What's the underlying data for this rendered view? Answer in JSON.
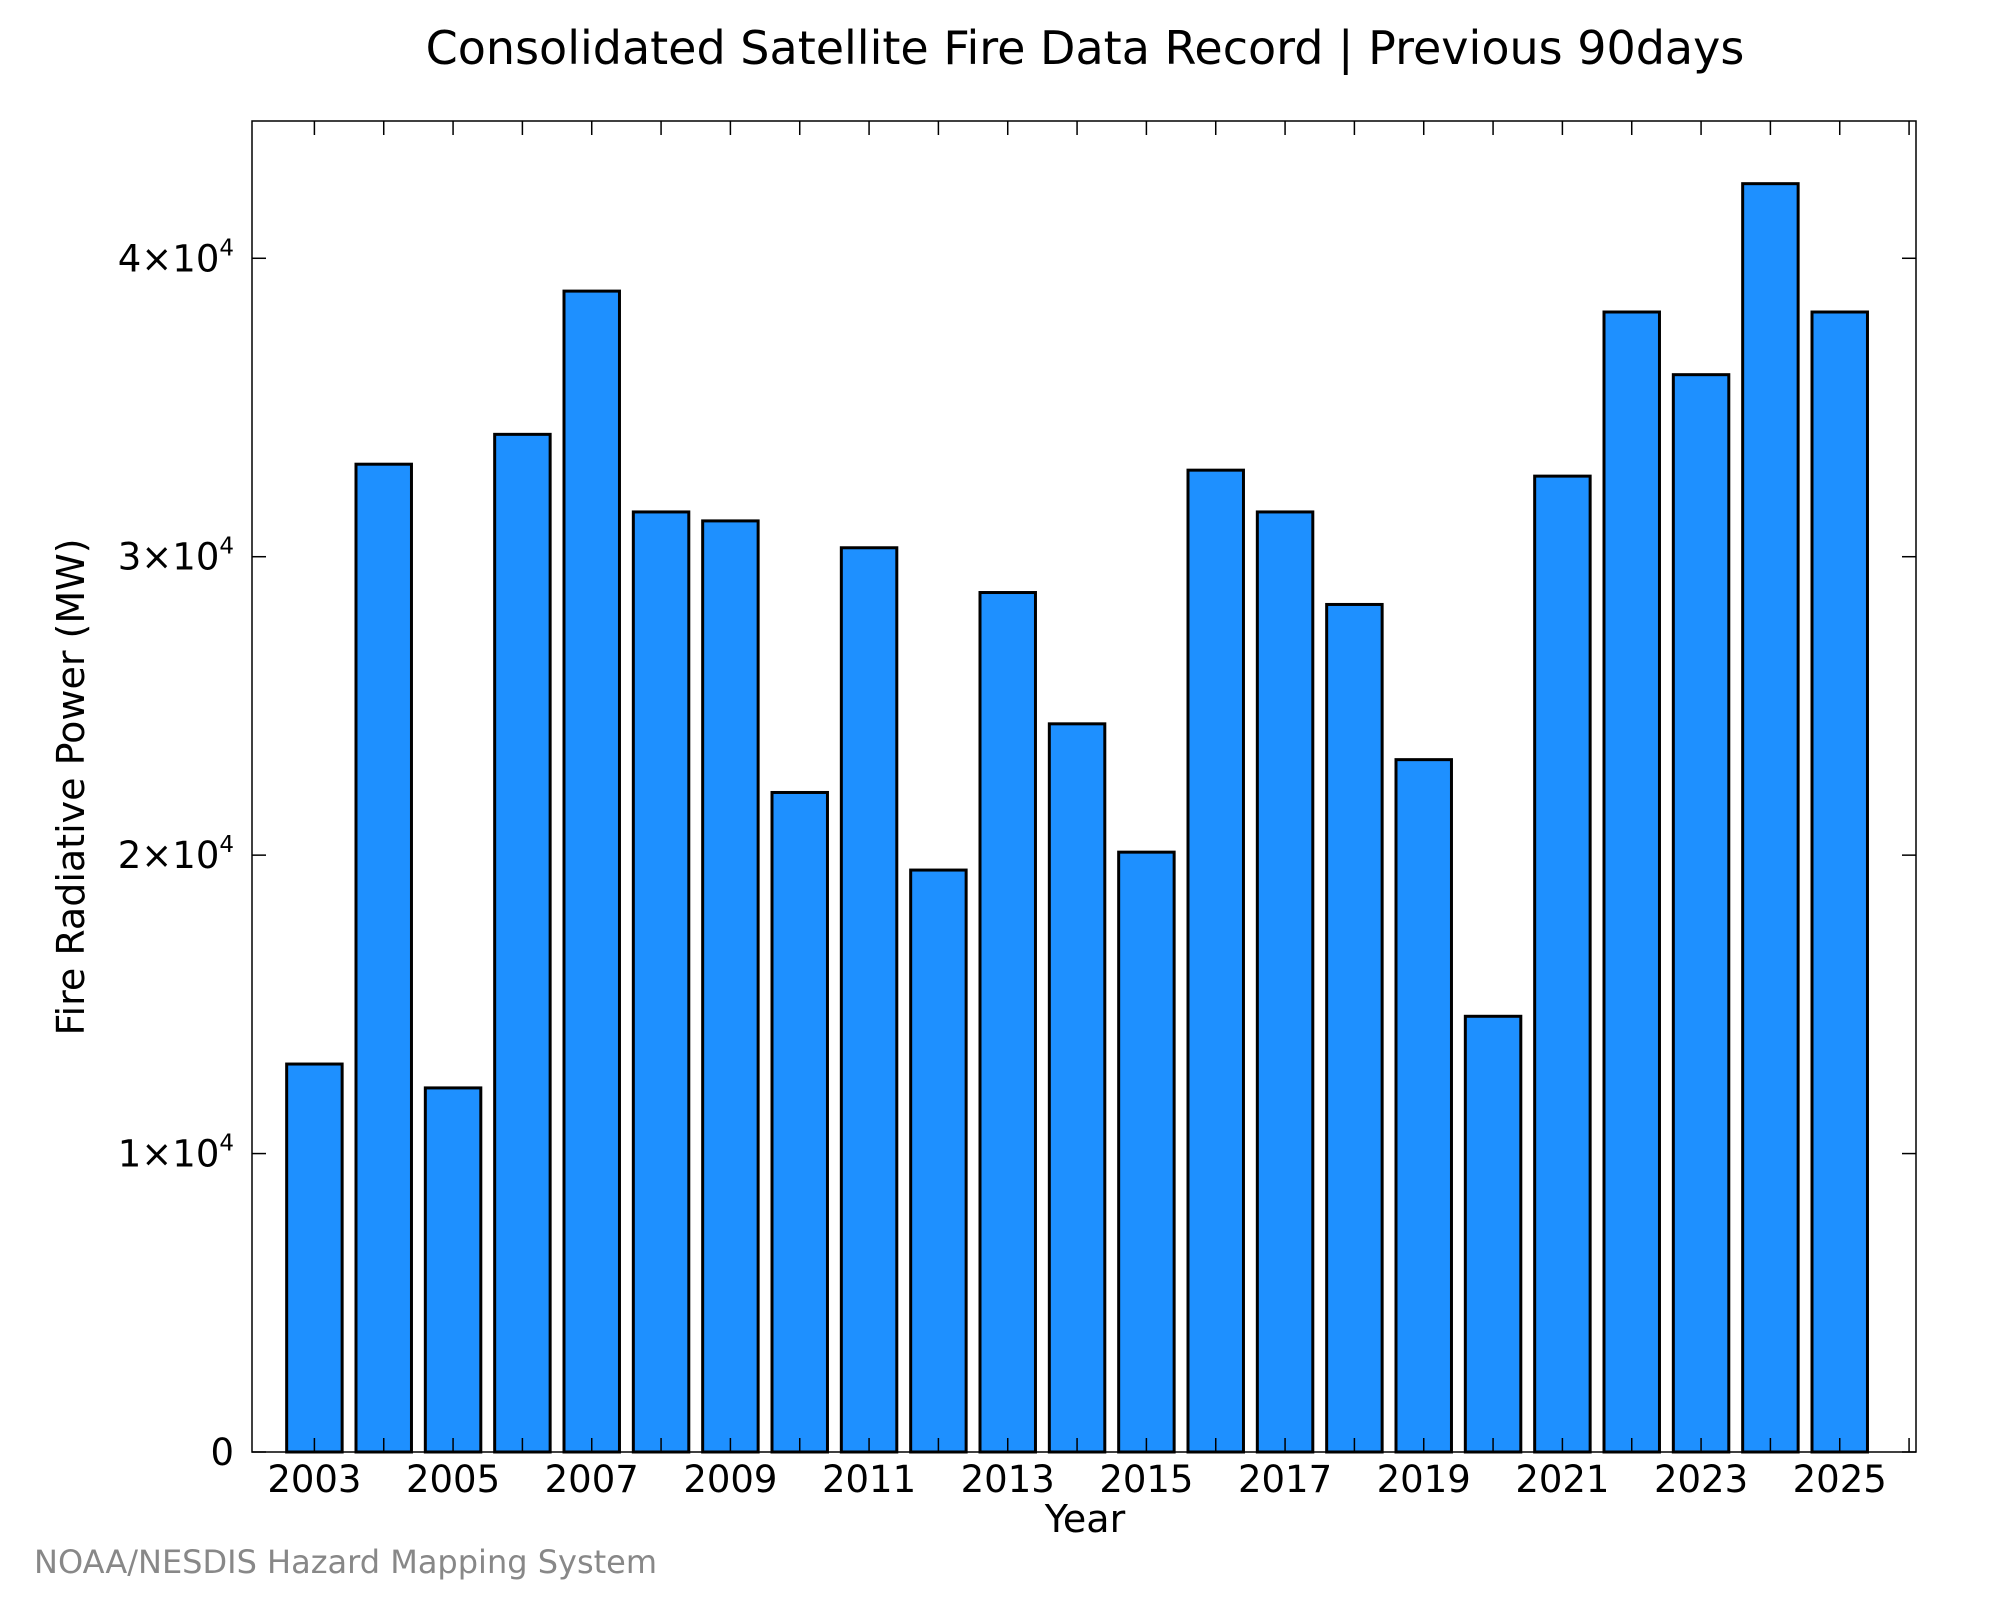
{
  "chart_data": {
    "type": "bar",
    "title": "Consolidated Satellite Fire Data Record | Previous 90days",
    "xlabel": "Year",
    "ylabel": "Fire Radiative Power (MW)",
    "credit": "NOAA/NESDIS Hazard Mapping System",
    "bar_color": "#1e90ff",
    "edge_color": "#000000",
    "ylim": [
      0,
      44600
    ],
    "xlim": [
      2002.1,
      2026.1
    ],
    "grid": false,
    "x": [
      2003,
      2004,
      2005,
      2006,
      2007,
      2008,
      2009,
      2010,
      2011,
      2012,
      2013,
      2014,
      2015,
      2016,
      2017,
      2018,
      2019,
      2020,
      2021,
      2022,
      2023,
      2024,
      2025
    ],
    "values": [
      13000,
      33100,
      12200,
      34100,
      38900,
      31500,
      31200,
      22100,
      30300,
      19500,
      28800,
      24400,
      20100,
      32900,
      31500,
      28400,
      23200,
      14600,
      32700,
      38200,
      36100,
      42500,
      38200
    ],
    "x_ticks": [
      {
        "value": 2003,
        "label": "2003"
      },
      {
        "value": 2005,
        "label": "2005"
      },
      {
        "value": 2007,
        "label": "2007"
      },
      {
        "value": 2009,
        "label": "2009"
      },
      {
        "value": 2011,
        "label": "2011"
      },
      {
        "value": 2013,
        "label": "2013"
      },
      {
        "value": 2015,
        "label": "2015"
      },
      {
        "value": 2017,
        "label": "2017"
      },
      {
        "value": 2019,
        "label": "2019"
      },
      {
        "value": 2021,
        "label": "2021"
      },
      {
        "value": 2023,
        "label": "2023"
      },
      {
        "value": 2025,
        "label": "2025"
      }
    ],
    "y_ticks": [
      {
        "value": 0,
        "mantissa": "0",
        "exponent": ""
      },
      {
        "value": 10000,
        "mantissa": "1×10",
        "exponent": "4"
      },
      {
        "value": 20000,
        "mantissa": "2×10",
        "exponent": "4"
      },
      {
        "value": 30000,
        "mantissa": "3×10",
        "exponent": "4"
      },
      {
        "value": 40000,
        "mantissa": "4×10",
        "exponent": "4"
      }
    ]
  }
}
